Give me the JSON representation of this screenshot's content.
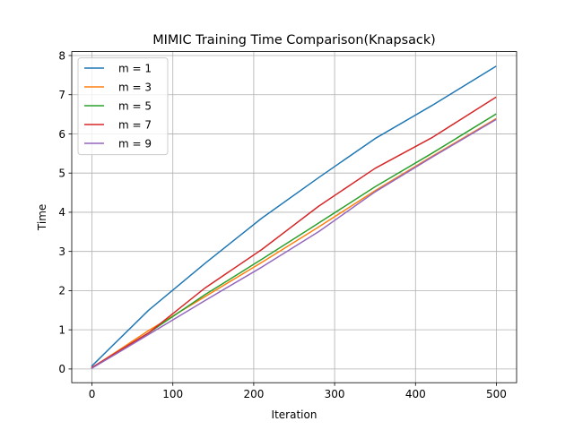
{
  "chart_data": {
    "type": "line",
    "title": "MIMIC Training Time Comparison(Knapsack)",
    "xlabel": "Iteration",
    "ylabel": "Time",
    "xlim": [
      -25,
      525
    ],
    "ylim": [
      -0.35,
      8.1
    ],
    "xticks": [
      0,
      100,
      200,
      300,
      400,
      500
    ],
    "yticks": [
      0,
      1,
      2,
      3,
      4,
      5,
      6,
      7,
      8
    ],
    "grid": true,
    "legend_position": "upper-left",
    "series": [
      {
        "name": "m = 1",
        "color": "#1f77b4",
        "x": [
          0,
          70,
          140,
          210,
          280,
          350,
          420,
          499
        ],
        "y": [
          0.08,
          1.5,
          2.7,
          3.85,
          4.88,
          5.88,
          6.72,
          7.72
        ]
      },
      {
        "name": "m = 3",
        "color": "#ff7f0e",
        "x": [
          0,
          70,
          140,
          210,
          280,
          350,
          420,
          499
        ],
        "y": [
          0.03,
          0.98,
          1.85,
          2.72,
          3.62,
          4.55,
          5.42,
          6.38
        ]
      },
      {
        "name": "m = 5",
        "color": "#2ca02c",
        "x": [
          0,
          70,
          140,
          210,
          280,
          350,
          420,
          499
        ],
        "y": [
          0.03,
          0.92,
          1.9,
          2.8,
          3.72,
          4.65,
          5.5,
          6.5
        ]
      },
      {
        "name": "m = 7",
        "color": "#d62728",
        "x": [
          0,
          70,
          140,
          210,
          280,
          350,
          420,
          499
        ],
        "y": [
          0.04,
          0.92,
          2.07,
          3.05,
          4.15,
          5.12,
          5.9,
          6.93
        ]
      },
      {
        "name": "m = 9",
        "color": "#9467bd",
        "x": [
          0,
          70,
          140,
          210,
          280,
          350,
          420,
          499
        ],
        "y": [
          0.02,
          0.88,
          1.75,
          2.6,
          3.5,
          4.52,
          5.4,
          6.36
        ]
      }
    ]
  }
}
